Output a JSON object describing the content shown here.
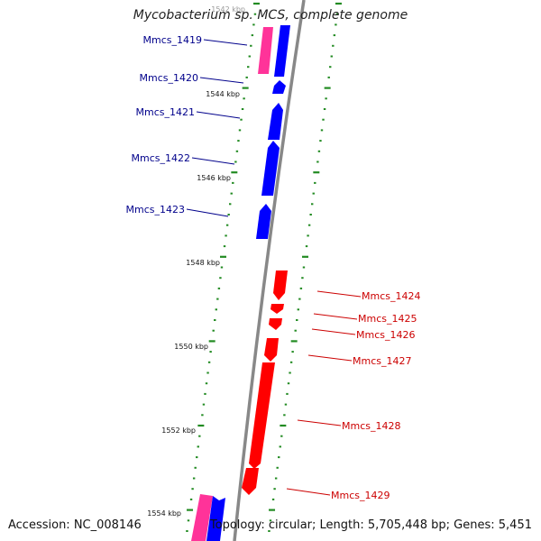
{
  "title": "Mycobacterium sp. MCS, complete genome",
  "accession_text": "Accession: NC_008146",
  "stats_text": "Topology: circular; Length: 5,705,448 bp; Genes: 5,451",
  "colors": {
    "background": "#ffffff",
    "backbone": "#888888",
    "forward_gene": "#0000ff",
    "reverse_gene": "#ff0000",
    "rna_gene": "#ff3399",
    "tick": "#228b22",
    "forward_label": "#00008b",
    "reverse_label": "#cc0000"
  },
  "scale_labels": [
    "1542 kbp",
    "1544 kbp",
    "1546 kbp",
    "1548 kbp",
    "1550 kbp",
    "1552 kbp",
    "1554 kbp"
  ],
  "forward_labels": [
    "Mmcs_1419",
    "Mmcs_1420",
    "Mmcs_1421",
    "Mmcs_1422",
    "Mmcs_1423"
  ],
  "reverse_labels": [
    "Mmcs_1424",
    "Mmcs_1425",
    "Mmcs_1426",
    "Mmcs_1427",
    "Mmcs_1428",
    "Mmcs_1429"
  ]
}
